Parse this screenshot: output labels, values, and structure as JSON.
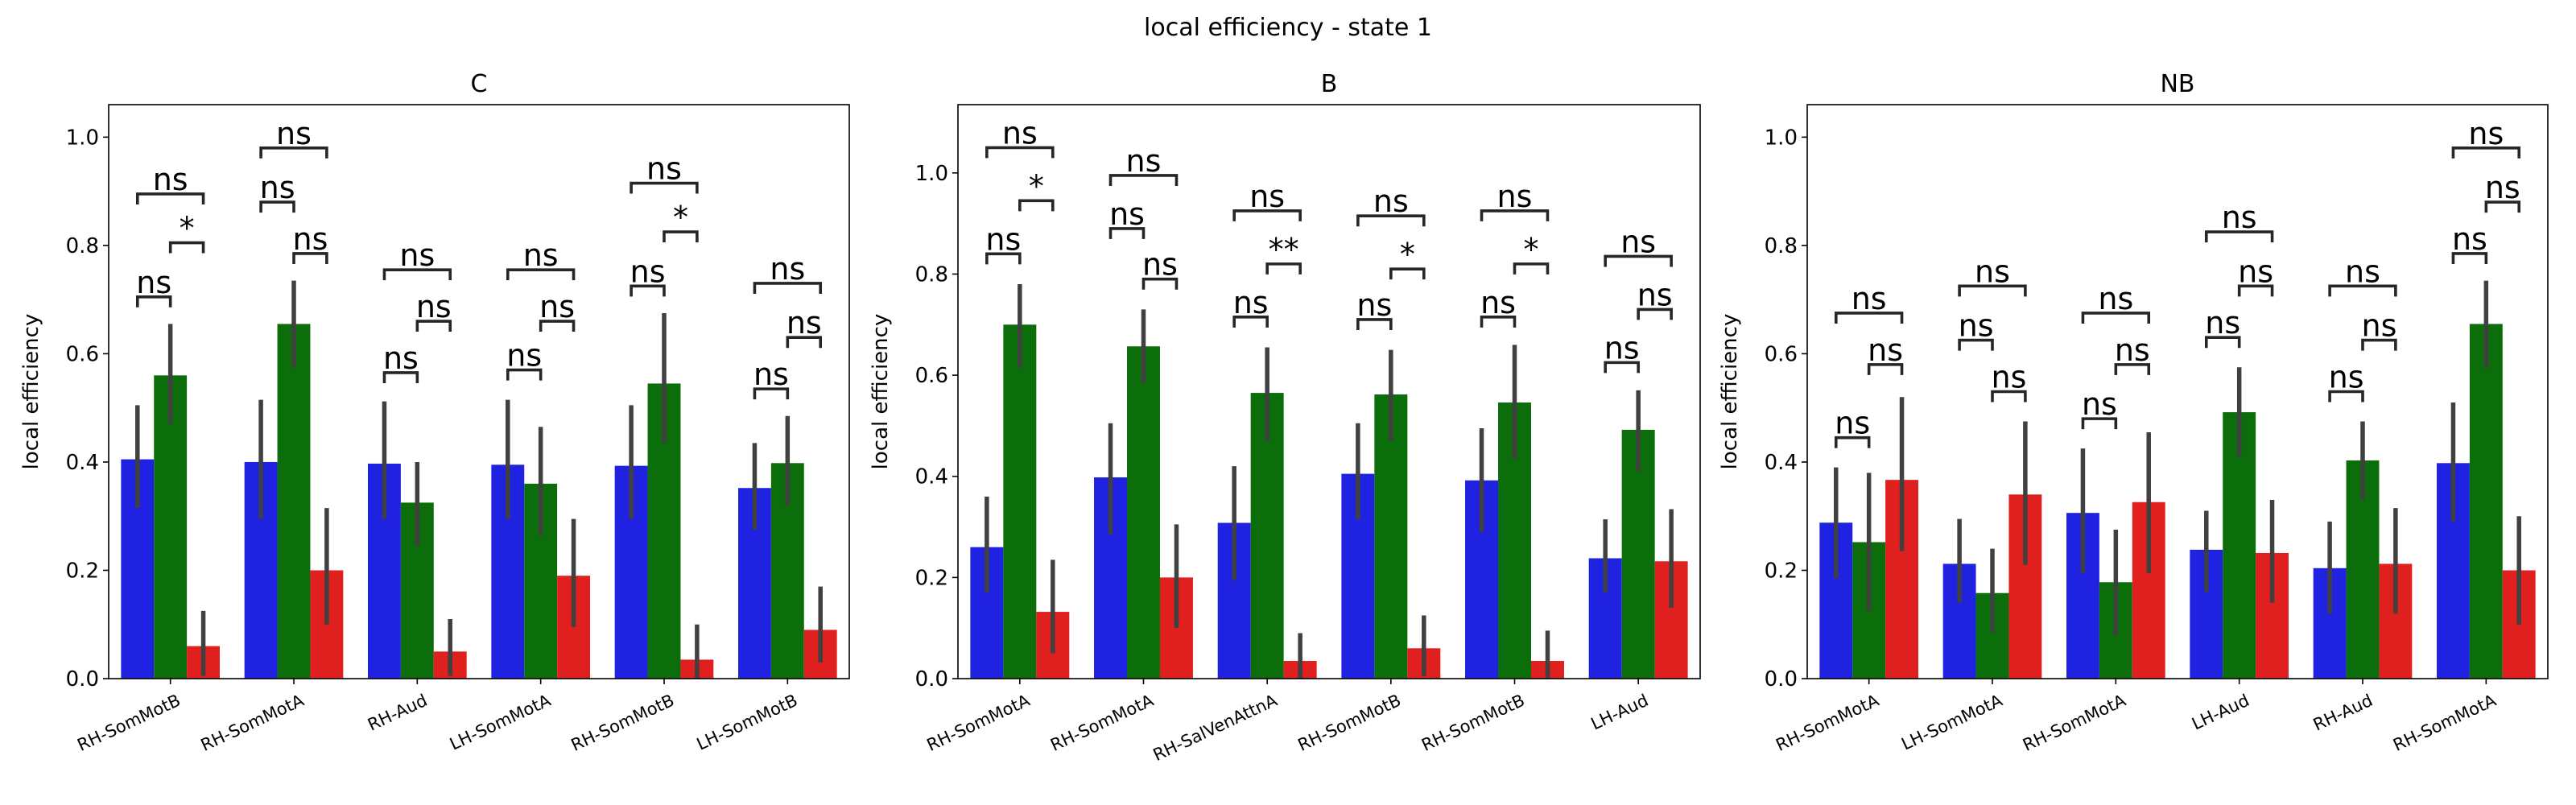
{
  "figure": {
    "title": "local efficiency - state 1"
  },
  "colors": {
    "series": [
      "#1f22e0",
      "#0b6e0b",
      "#e01f1f"
    ],
    "errorbar": "#404040"
  },
  "chart_data": [
    {
      "type": "bar",
      "title": "C",
      "ylabel": "local efficiency",
      "ylim": [
        0,
        1.06
      ],
      "yticks": [
        "0.0",
        "0.2",
        "0.4",
        "0.6",
        "0.8",
        "1.0"
      ],
      "categories": [
        "RH-SomMotB",
        "RH-SomMotA",
        "RH-Aud",
        "LH-SomMotA",
        "RH-SomMotB",
        "LH-SomMotB"
      ],
      "series": [
        {
          "values": [
            0.405,
            0.4,
            0.397,
            0.395,
            0.393,
            0.352
          ],
          "err_low": [
            0.315,
            0.295,
            0.295,
            0.295,
            0.295,
            0.275
          ],
          "err_high": [
            0.505,
            0.515,
            0.512,
            0.515,
            0.505,
            0.435
          ]
        },
        {
          "values": [
            0.56,
            0.655,
            0.325,
            0.36,
            0.545,
            0.398
          ],
          "err_low": [
            0.47,
            0.575,
            0.245,
            0.265,
            0.435,
            0.32
          ],
          "err_high": [
            0.655,
            0.735,
            0.4,
            0.465,
            0.675,
            0.485
          ]
        },
        {
          "values": [
            0.06,
            0.2,
            0.05,
            0.19,
            0.035,
            0.09
          ],
          "err_low": [
            0.005,
            0.1,
            0.005,
            0.095,
            0.0,
            0.03
          ],
          "err_high": [
            0.125,
            0.315,
            0.11,
            0.295,
            0.1,
            0.17
          ]
        }
      ],
      "annotations": [
        {
          "cat": 0,
          "from": 0,
          "to": 1,
          "y": 0.705,
          "text": "ns"
        },
        {
          "cat": 0,
          "from": 1,
          "to": 2,
          "y": 0.805,
          "text": "*"
        },
        {
          "cat": 0,
          "from": 0,
          "to": 2,
          "y": 0.895,
          "text": "ns"
        },
        {
          "cat": 1,
          "from": 0,
          "to": 1,
          "y": 0.88,
          "text": "ns"
        },
        {
          "cat": 1,
          "from": 1,
          "to": 2,
          "y": 0.785,
          "text": "ns"
        },
        {
          "cat": 1,
          "from": 0,
          "to": 2,
          "y": 0.98,
          "text": "ns"
        },
        {
          "cat": 2,
          "from": 0,
          "to": 1,
          "y": 0.565,
          "text": "ns"
        },
        {
          "cat": 2,
          "from": 1,
          "to": 2,
          "y": 0.66,
          "text": "ns"
        },
        {
          "cat": 2,
          "from": 0,
          "to": 2,
          "y": 0.755,
          "text": "ns"
        },
        {
          "cat": 3,
          "from": 0,
          "to": 1,
          "y": 0.57,
          "text": "ns"
        },
        {
          "cat": 3,
          "from": 1,
          "to": 2,
          "y": 0.66,
          "text": "ns"
        },
        {
          "cat": 3,
          "from": 0,
          "to": 2,
          "y": 0.755,
          "text": "ns"
        },
        {
          "cat": 4,
          "from": 0,
          "to": 1,
          "y": 0.725,
          "text": "ns"
        },
        {
          "cat": 4,
          "from": 1,
          "to": 2,
          "y": 0.825,
          "text": "*"
        },
        {
          "cat": 4,
          "from": 0,
          "to": 2,
          "y": 0.915,
          "text": "ns"
        },
        {
          "cat": 5,
          "from": 0,
          "to": 1,
          "y": 0.535,
          "text": "ns"
        },
        {
          "cat": 5,
          "from": 1,
          "to": 2,
          "y": 0.63,
          "text": "ns"
        },
        {
          "cat": 5,
          "from": 0,
          "to": 2,
          "y": 0.73,
          "text": "ns"
        }
      ]
    },
    {
      "type": "bar",
      "title": "B",
      "ylabel": "local efficiency",
      "ylim": [
        0,
        1.135
      ],
      "yticks": [
        "0.0",
        "0.2",
        "0.4",
        "0.6",
        "0.8",
        "1.0"
      ],
      "categories": [
        "RH-SomMotA",
        "RH-SomMotA",
        "RH-SalVenAttnA",
        "RH-SomMotB",
        "RH-SomMotB",
        "LH-Aud"
      ],
      "series": [
        {
          "values": [
            0.26,
            0.398,
            0.308,
            0.405,
            0.392,
            0.238
          ],
          "err_low": [
            0.17,
            0.285,
            0.195,
            0.315,
            0.29,
            0.17
          ],
          "err_high": [
            0.36,
            0.505,
            0.42,
            0.505,
            0.495,
            0.315
          ]
        },
        {
          "values": [
            0.7,
            0.657,
            0.565,
            0.562,
            0.546,
            0.492
          ],
          "err_low": [
            0.615,
            0.585,
            0.47,
            0.47,
            0.435,
            0.41
          ],
          "err_high": [
            0.78,
            0.73,
            0.655,
            0.65,
            0.66,
            0.57
          ]
        },
        {
          "values": [
            0.132,
            0.2,
            0.035,
            0.06,
            0.035,
            0.232
          ],
          "err_low": [
            0.05,
            0.1,
            0.0,
            0.005,
            0.0,
            0.14
          ],
          "err_high": [
            0.235,
            0.305,
            0.09,
            0.125,
            0.095,
            0.335
          ]
        }
      ],
      "annotations": [
        {
          "cat": 0,
          "from": 0,
          "to": 1,
          "y": 0.84,
          "text": "ns"
        },
        {
          "cat": 0,
          "from": 1,
          "to": 2,
          "y": 0.945,
          "text": "*"
        },
        {
          "cat": 0,
          "from": 0,
          "to": 2,
          "y": 1.05,
          "text": "ns"
        },
        {
          "cat": 1,
          "from": 0,
          "to": 1,
          "y": 0.89,
          "text": "ns"
        },
        {
          "cat": 1,
          "from": 1,
          "to": 2,
          "y": 0.79,
          "text": "ns"
        },
        {
          "cat": 1,
          "from": 0,
          "to": 2,
          "y": 0.995,
          "text": "ns"
        },
        {
          "cat": 2,
          "from": 0,
          "to": 1,
          "y": 0.715,
          "text": "ns"
        },
        {
          "cat": 2,
          "from": 1,
          "to": 2,
          "y": 0.82,
          "text": "**"
        },
        {
          "cat": 2,
          "from": 0,
          "to": 2,
          "y": 0.925,
          "text": "ns"
        },
        {
          "cat": 3,
          "from": 0,
          "to": 1,
          "y": 0.71,
          "text": "ns"
        },
        {
          "cat": 3,
          "from": 1,
          "to": 2,
          "y": 0.81,
          "text": "*"
        },
        {
          "cat": 3,
          "from": 0,
          "to": 2,
          "y": 0.915,
          "text": "ns"
        },
        {
          "cat": 4,
          "from": 0,
          "to": 1,
          "y": 0.715,
          "text": "ns"
        },
        {
          "cat": 4,
          "from": 1,
          "to": 2,
          "y": 0.82,
          "text": "*"
        },
        {
          "cat": 4,
          "from": 0,
          "to": 2,
          "y": 0.925,
          "text": "ns"
        },
        {
          "cat": 5,
          "from": 0,
          "to": 1,
          "y": 0.625,
          "text": "ns"
        },
        {
          "cat": 5,
          "from": 1,
          "to": 2,
          "y": 0.73,
          "text": "ns"
        },
        {
          "cat": 5,
          "from": 0,
          "to": 2,
          "y": 0.835,
          "text": "ns"
        }
      ]
    },
    {
      "type": "bar",
      "title": "NB",
      "ylabel": "local efficiency",
      "ylim": [
        0,
        1.06
      ],
      "yticks": [
        "0.0",
        "0.2",
        "0.4",
        "0.6",
        "0.8",
        "1.0"
      ],
      "categories": [
        "RH-SomMotA",
        "LH-SomMotA",
        "RH-SomMotA",
        "LH-Aud",
        "RH-Aud",
        "RH-SomMotA"
      ],
      "series": [
        {
          "values": [
            0.288,
            0.212,
            0.306,
            0.238,
            0.204,
            0.398
          ],
          "err_low": [
            0.185,
            0.14,
            0.195,
            0.16,
            0.12,
            0.29
          ],
          "err_high": [
            0.39,
            0.295,
            0.425,
            0.31,
            0.29,
            0.51
          ]
        },
        {
          "values": [
            0.252,
            0.158,
            0.178,
            0.492,
            0.403,
            0.655
          ],
          "err_low": [
            0.125,
            0.085,
            0.08,
            0.41,
            0.33,
            0.575
          ],
          "err_high": [
            0.38,
            0.24,
            0.275,
            0.575,
            0.475,
            0.735
          ]
        },
        {
          "values": [
            0.367,
            0.34,
            0.326,
            0.232,
            0.212,
            0.2
          ],
          "err_low": [
            0.235,
            0.21,
            0.195,
            0.14,
            0.12,
            0.1
          ],
          "err_high": [
            0.52,
            0.475,
            0.455,
            0.33,
            0.315,
            0.3
          ]
        }
      ],
      "annotations": [
        {
          "cat": 0,
          "from": 0,
          "to": 1,
          "y": 0.445,
          "text": "ns"
        },
        {
          "cat": 0,
          "from": 1,
          "to": 2,
          "y": 0.58,
          "text": "ns"
        },
        {
          "cat": 0,
          "from": 0,
          "to": 2,
          "y": 0.675,
          "text": "ns"
        },
        {
          "cat": 1,
          "from": 0,
          "to": 1,
          "y": 0.625,
          "text": "ns"
        },
        {
          "cat": 1,
          "from": 1,
          "to": 2,
          "y": 0.53,
          "text": "ns"
        },
        {
          "cat": 1,
          "from": 0,
          "to": 2,
          "y": 0.725,
          "text": "ns"
        },
        {
          "cat": 2,
          "from": 0,
          "to": 1,
          "y": 0.48,
          "text": "ns"
        },
        {
          "cat": 2,
          "from": 1,
          "to": 2,
          "y": 0.58,
          "text": "ns"
        },
        {
          "cat": 2,
          "from": 0,
          "to": 2,
          "y": 0.675,
          "text": "ns"
        },
        {
          "cat": 3,
          "from": 0,
          "to": 1,
          "y": 0.63,
          "text": "ns"
        },
        {
          "cat": 3,
          "from": 1,
          "to": 2,
          "y": 0.725,
          "text": "ns"
        },
        {
          "cat": 3,
          "from": 0,
          "to": 2,
          "y": 0.825,
          "text": "ns"
        },
        {
          "cat": 4,
          "from": 0,
          "to": 1,
          "y": 0.53,
          "text": "ns"
        },
        {
          "cat": 4,
          "from": 1,
          "to": 2,
          "y": 0.625,
          "text": "ns"
        },
        {
          "cat": 4,
          "from": 0,
          "to": 2,
          "y": 0.725,
          "text": "ns"
        },
        {
          "cat": 5,
          "from": 0,
          "to": 1,
          "y": 0.785,
          "text": "ns"
        },
        {
          "cat": 5,
          "from": 1,
          "to": 2,
          "y": 0.88,
          "text": "ns"
        },
        {
          "cat": 5,
          "from": 0,
          "to": 2,
          "y": 0.98,
          "text": "ns"
        }
      ]
    }
  ]
}
